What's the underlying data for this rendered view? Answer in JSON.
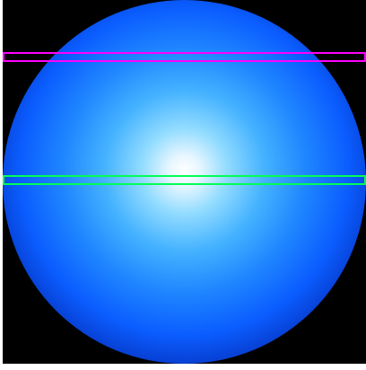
{
  "image": {
    "subject": "sphere-rendering",
    "background_color": "#000000",
    "page_background": "#ffffff",
    "sphere_colors": [
      "#ffffff",
      "#93dcff",
      "#1f86ff",
      "#0637c6",
      "#000000"
    ]
  },
  "overlays": [
    {
      "name": "magenta-band",
      "color": "#ff00ff"
    },
    {
      "name": "green-band",
      "color": "#00ff55"
    }
  ]
}
